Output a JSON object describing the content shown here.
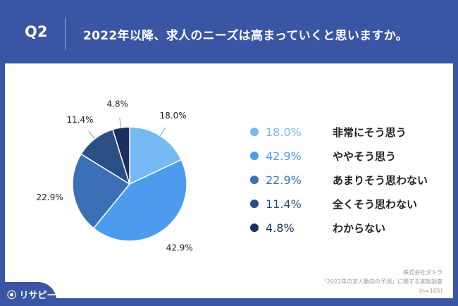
{
  "header": {
    "q": "Q2",
    "title": "2022年以降、求人のニーズは高まっていくと思いますか。"
  },
  "chart_data": {
    "type": "pie",
    "title": "2022年以降、求人のニーズは高まっていくと思いますか。",
    "categories": [
      "非常にそう思う",
      "ややそう思う",
      "あまりそう思わない",
      "全くそう思わない",
      "わからない"
    ],
    "values": [
      18.0,
      42.9,
      22.9,
      11.4,
      4.8
    ],
    "labels": [
      "18.0%",
      "42.9%",
      "22.9%",
      "11.4%",
      "4.8%"
    ],
    "colors": [
      "#74b8f4",
      "#4c9bef",
      "#3b70b6",
      "#2a4f87",
      "#1b2f5d"
    ],
    "legend": "right"
  },
  "source": {
    "line1": "株式会社ダトラ",
    "line2": "「2022年の求人動向の予測」に関する実態調査",
    "line3": "(n=105)"
  },
  "logo": "リサピー"
}
